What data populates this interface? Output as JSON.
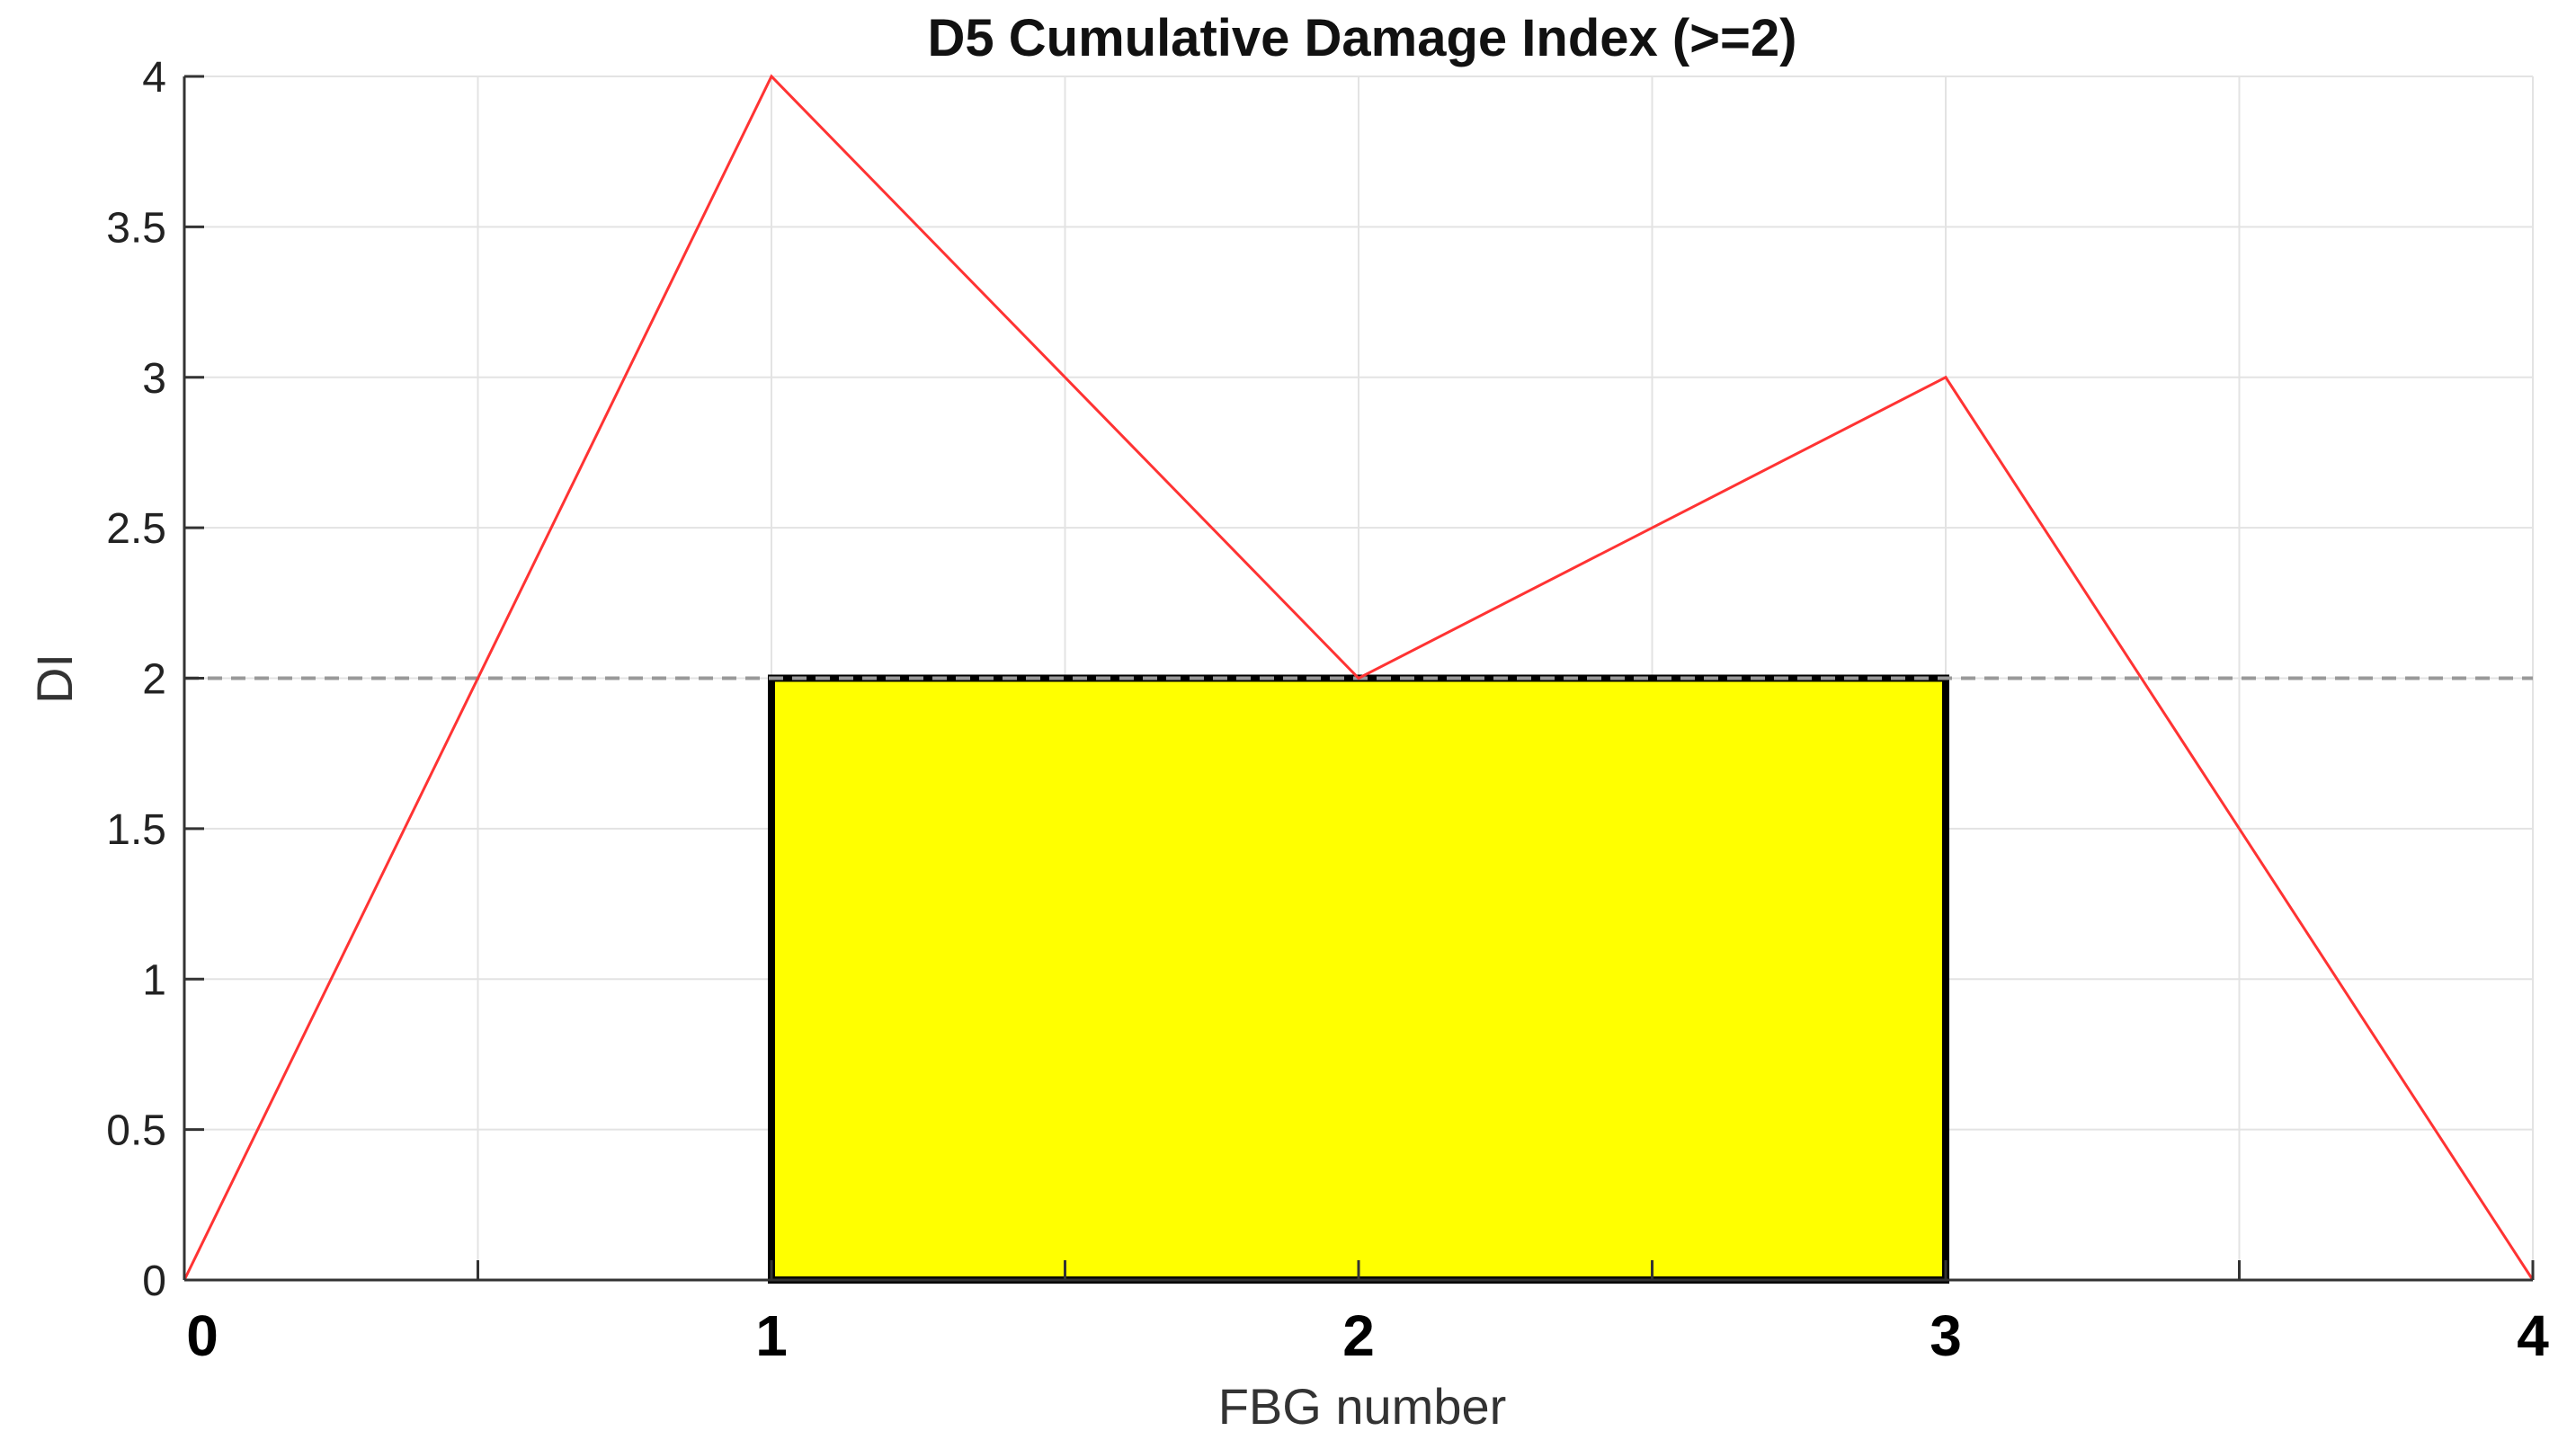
{
  "chart_data": {
    "type": "line",
    "title": "D5 Cumulative Damage Index (>=2)",
    "xlabel": "FBG number",
    "ylabel": "DI",
    "xlim": [
      0,
      4
    ],
    "ylim": [
      0,
      4
    ],
    "x_ticks": [
      0,
      1,
      2,
      3,
      4
    ],
    "x_tick_labels": [
      "0",
      "1",
      "2",
      "3",
      "4"
    ],
    "y_ticks": [
      0,
      0.5,
      1,
      1.5,
      2,
      2.5,
      3,
      3.5,
      4
    ],
    "y_tick_labels": [
      "0",
      "0.5",
      "1",
      "1.5",
      "2",
      "2.5",
      "3",
      "3.5",
      "4"
    ],
    "grid": true,
    "series": [
      {
        "x": [
          0,
          1,
          2,
          3,
          4
        ],
        "y": [
          0,
          4,
          2,
          3,
          0
        ],
        "color": "#ff3333"
      }
    ],
    "threshold": {
      "y": 2,
      "color": "#999999",
      "style": "dashed"
    },
    "highlight_region": {
      "x_start": 1,
      "x_end": 3,
      "y_start": 0,
      "y_end": 2,
      "fill": "#ffff00",
      "stroke": "#000000"
    }
  }
}
